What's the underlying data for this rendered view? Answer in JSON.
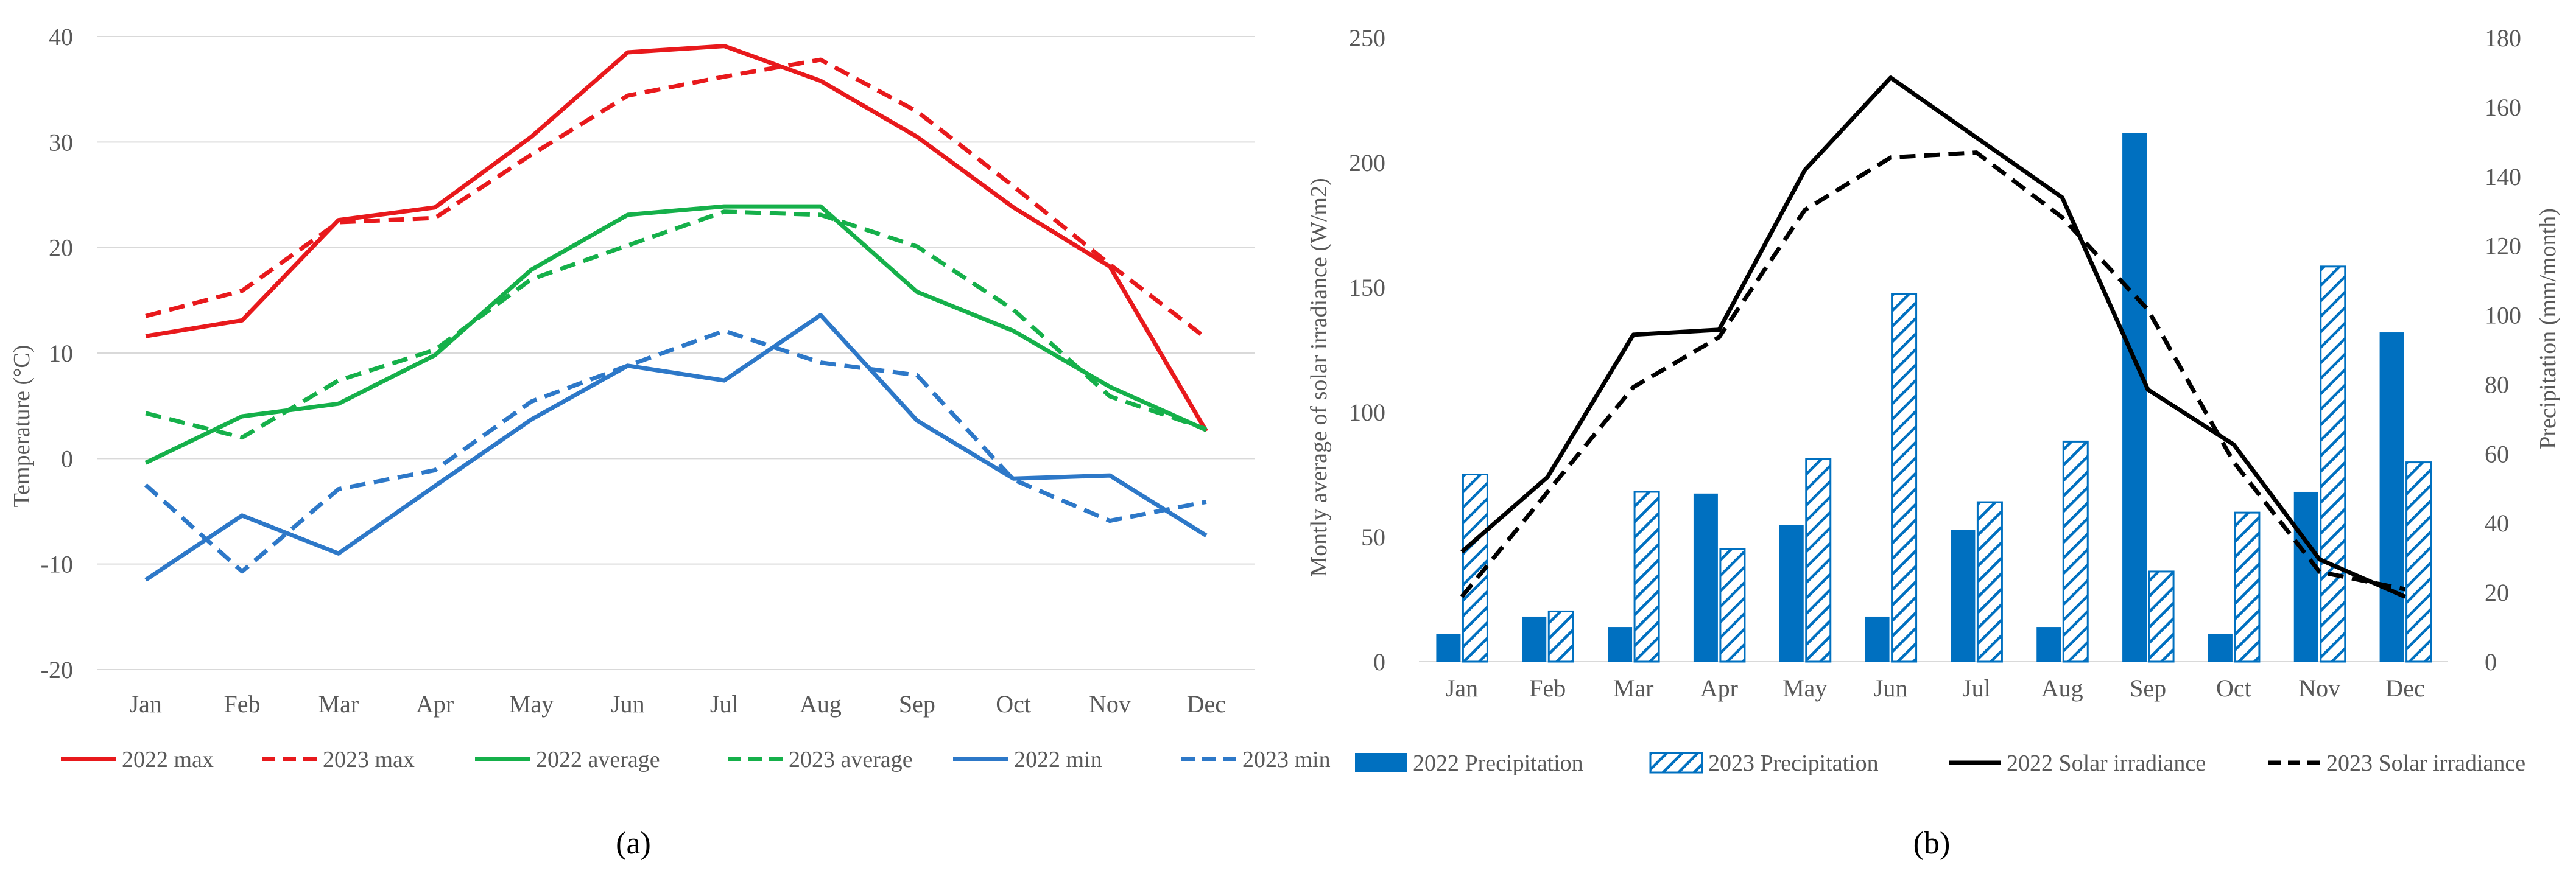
{
  "chart_data": [
    {
      "type": "line",
      "panel_label": "(a)",
      "title": "",
      "xlabel": "",
      "ylabel": "Temperature  (°C)",
      "ylim": [
        -20,
        40
      ],
      "yticks": [
        -20,
        -10,
        0,
        10,
        20,
        30,
        40
      ],
      "categories": [
        "Jan",
        "Feb",
        "Mar",
        "Apr",
        "May",
        "Jun",
        "Jul",
        "Aug",
        "Sep",
        "Oct",
        "Nov",
        "Dec"
      ],
      "grid": true,
      "legend_position": "bottom",
      "series": [
        {
          "name": "2022 max",
          "color": "#e8191c",
          "dash": "solid",
          "values": [
            11.6,
            13.1,
            22.6,
            23.8,
            30.5,
            38.5,
            39.1,
            35.8,
            30.5,
            23.8,
            18.2,
            2.6
          ]
        },
        {
          "name": "2023 max",
          "color": "#e8191c",
          "dash": "dashed",
          "values": [
            13.5,
            15.9,
            22.4,
            22.8,
            28.8,
            34.4,
            36.2,
            37.8,
            32.9,
            25.8,
            18.4,
            11.4
          ]
        },
        {
          "name": "2022 average",
          "color": "#15b04a",
          "dash": "solid",
          "values": [
            -0.4,
            4.0,
            5.2,
            9.8,
            17.9,
            23.1,
            23.9,
            23.9,
            15.8,
            12.1,
            6.8,
            2.7
          ]
        },
        {
          "name": "2023 average",
          "color": "#15b04a",
          "dash": "dashed",
          "values": [
            4.3,
            2.0,
            7.4,
            10.3,
            17.0,
            20.2,
            23.4,
            23.1,
            20.1,
            14.1,
            5.9,
            2.8
          ]
        },
        {
          "name": "2022 min",
          "color": "#2d78c8",
          "dash": "solid",
          "values": [
            -11.5,
            -5.4,
            -9.0,
            -2.6,
            3.7,
            8.8,
            7.4,
            13.6,
            3.6,
            -1.9,
            -1.6,
            -7.3
          ]
        },
        {
          "name": "2023 min",
          "color": "#2d78c8",
          "dash": "dashed",
          "values": [
            -2.5,
            -10.7,
            -2.9,
            -1.1,
            5.4,
            8.8,
            12.1,
            9.1,
            7.9,
            -2.0,
            -5.9,
            -4.1
          ]
        }
      ]
    },
    {
      "type": "bar+line",
      "panel_label": "(b)",
      "title": "",
      "xlabel": "",
      "ylabel": "Montly  average of  solar  irradiance  (W/m2)",
      "y2label": "Precipitation   (mm/month)",
      "ylim": [
        0,
        250
      ],
      "yticks": [
        0,
        50,
        100,
        150,
        200,
        250
      ],
      "y2lim": [
        0,
        180
      ],
      "y2ticks": [
        0,
        20,
        40,
        60,
        80,
        100,
        120,
        140,
        160,
        180
      ],
      "categories": [
        "Jan",
        "Feb",
        "Mar",
        "Apr",
        "May",
        "Jun",
        "Jul",
        "Aug",
        "Sep",
        "Oct",
        "Nov",
        "Dec"
      ],
      "grid": false,
      "legend_position": "bottom",
      "bar_series": [
        {
          "name": "2022 Precipitation",
          "color": "#0070c0",
          "pattern": "solid",
          "axis": "right",
          "values": [
            8,
            13,
            10,
            48.5,
            39.5,
            13,
            38,
            10,
            152.5,
            8,
            49,
            95
          ]
        },
        {
          "name": "2023 Precipitation",
          "color": "#0070c0",
          "pattern": "hatched",
          "axis": "right",
          "values": [
            54,
            14.5,
            49,
            32.5,
            58.5,
            106,
            46,
            63.5,
            26,
            43,
            114,
            57.5
          ]
        }
      ],
      "line_series": [
        {
          "name": "2022 Solar irradiance",
          "color": "#000000",
          "dash": "solid",
          "axis": "left",
          "values": [
            44,
            74,
            131,
            133,
            197,
            234,
            210,
            186,
            109,
            87,
            41,
            26
          ]
        },
        {
          "name": "2023 Solar irradiance",
          "color": "#000000",
          "dash": "dashed",
          "axis": "left",
          "values": [
            26,
            68,
            110,
            130,
            181,
            202,
            204,
            178,
            141,
            80,
            36,
            29
          ]
        }
      ]
    }
  ]
}
